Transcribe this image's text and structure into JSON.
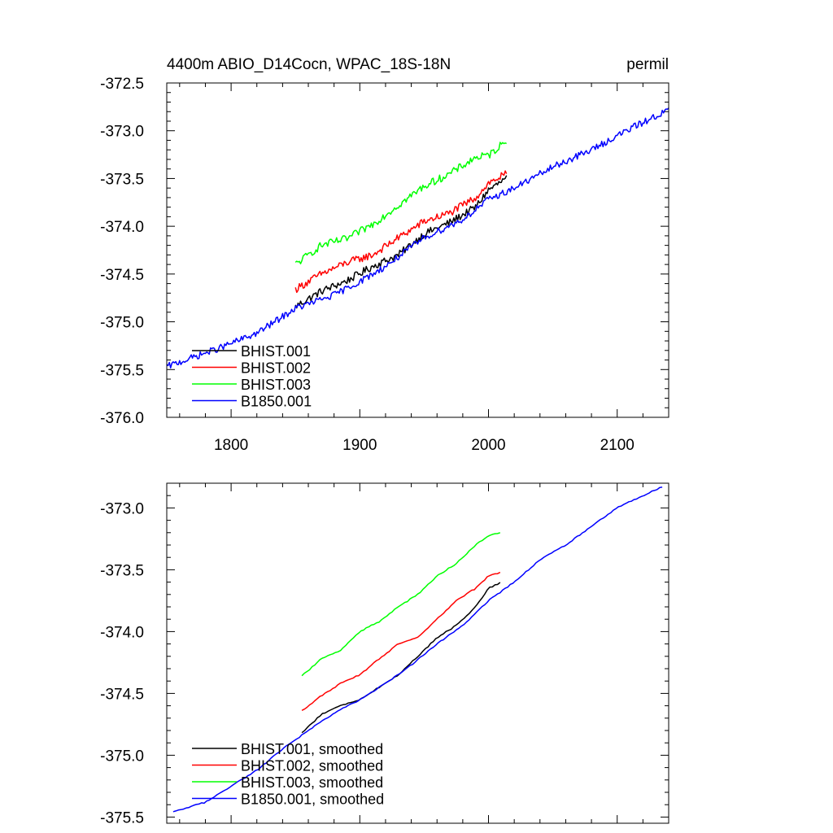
{
  "chart_data": [
    {
      "type": "line",
      "title_left": "4400m ABIO_D14Cocn, WPAC_18S-18N",
      "title_right": "permil",
      "xlim": [
        1750,
        2140
      ],
      "ylim": [
        -376.0,
        -372.5
      ],
      "xticks": [
        1800,
        1900,
        2000,
        2100
      ],
      "x_tick_labels": [
        "1800",
        "1900",
        "2000",
        "2100"
      ],
      "yticks": [
        -376.0,
        -375.5,
        -375.0,
        -374.5,
        -374.0,
        -373.5,
        -373.0,
        -372.5
      ],
      "y_tick_labels": [
        "-376.0",
        "-375.5",
        "-375.0",
        "-374.5",
        "-374.0",
        "-373.5",
        "-373.0",
        "-372.5"
      ],
      "legend_position": "bottom-left",
      "series": [
        {
          "name": "BHIST.001",
          "color": "#000000",
          "noise": 0.04,
          "x": [
            1850,
            1870,
            1890,
            1910,
            1930,
            1950,
            1970,
            1990,
            2000,
            2014
          ],
          "y": [
            -374.84,
            -374.68,
            -374.57,
            -374.42,
            -374.3,
            -374.08,
            -373.96,
            -373.8,
            -373.62,
            -373.5
          ]
        },
        {
          "name": "BHIST.002",
          "color": "#ff0000",
          "noise": 0.04,
          "x": [
            1850,
            1870,
            1890,
            1910,
            1930,
            1950,
            1970,
            1990,
            2000,
            2014
          ],
          "y": [
            -374.66,
            -374.5,
            -374.38,
            -374.3,
            -374.12,
            -373.95,
            -373.86,
            -373.7,
            -373.55,
            -373.45
          ]
        },
        {
          "name": "BHIST.003",
          "color": "#00ff00",
          "noise": 0.04,
          "x": [
            1850,
            1870,
            1890,
            1910,
            1930,
            1950,
            1970,
            1990,
            2000,
            2014
          ],
          "y": [
            -374.4,
            -374.2,
            -374.13,
            -373.98,
            -373.78,
            -373.58,
            -373.45,
            -373.28,
            -373.26,
            -373.1
          ]
        },
        {
          "name": "B1850.001",
          "color": "#0000ff",
          "noise": 0.035,
          "x": [
            1750,
            1790,
            1820,
            1850,
            1880,
            1900,
            1920,
            1950,
            1980,
            2000,
            2020,
            2050,
            2080,
            2110,
            2140
          ],
          "y": [
            -375.47,
            -375.28,
            -375.12,
            -374.86,
            -374.72,
            -374.58,
            -374.42,
            -374.12,
            -373.93,
            -373.72,
            -373.6,
            -373.38,
            -373.2,
            -372.98,
            -372.78
          ]
        }
      ]
    },
    {
      "type": "line",
      "xlim": [
        1750,
        2140
      ],
      "ylim": [
        -375.55,
        -372.8
      ],
      "xticks": [
        1800,
        1900,
        2000,
        2100
      ],
      "yticks": [
        -375.5,
        -375.0,
        -374.5,
        -374.0,
        -373.5,
        -373.0
      ],
      "y_tick_labels": [
        "-375.5",
        "-375.0",
        "-374.5",
        "-374.0",
        "-373.5",
        "-373.0"
      ],
      "legend_position": "bottom-left",
      "series": [
        {
          "name": "BHIST.001, smoothed",
          "color": "#000000",
          "x": [
            1855,
            1870,
            1885,
            1900,
            1915,
            1930,
            1945,
            1960,
            1975,
            1990,
            2000,
            2010
          ],
          "y": [
            -374.82,
            -374.67,
            -374.6,
            -374.55,
            -374.45,
            -374.35,
            -374.2,
            -374.05,
            -373.95,
            -373.8,
            -373.65,
            -373.6
          ]
        },
        {
          "name": "BHIST.002, smoothed",
          "color": "#ff0000",
          "x": [
            1855,
            1870,
            1885,
            1900,
            1915,
            1930,
            1945,
            1960,
            1975,
            1990,
            2000,
            2010
          ],
          "y": [
            -374.64,
            -374.52,
            -374.42,
            -374.35,
            -374.22,
            -374.1,
            -374.05,
            -373.9,
            -373.75,
            -373.65,
            -373.55,
            -373.52
          ]
        },
        {
          "name": "BHIST.003, smoothed",
          "color": "#00ff00",
          "x": [
            1855,
            1870,
            1885,
            1900,
            1915,
            1930,
            1945,
            1960,
            1975,
            1990,
            2000,
            2010
          ],
          "y": [
            -374.36,
            -374.22,
            -374.15,
            -374.0,
            -373.92,
            -373.8,
            -373.7,
            -373.55,
            -373.45,
            -373.3,
            -373.22,
            -373.2
          ]
        },
        {
          "name": "B1850.001, smoothed",
          "color": "#0000ff",
          "x": [
            1755,
            1780,
            1800,
            1820,
            1840,
            1860,
            1880,
            1900,
            1920,
            1940,
            1960,
            1980,
            2000,
            2020,
            2040,
            2060,
            2080,
            2100,
            2120,
            2135
          ],
          "y": [
            -375.46,
            -375.38,
            -375.25,
            -375.12,
            -374.95,
            -374.8,
            -374.66,
            -374.55,
            -374.42,
            -374.27,
            -374.1,
            -373.95,
            -373.75,
            -373.6,
            -373.42,
            -373.3,
            -373.15,
            -373.0,
            -372.9,
            -372.83
          ]
        }
      ]
    }
  ]
}
